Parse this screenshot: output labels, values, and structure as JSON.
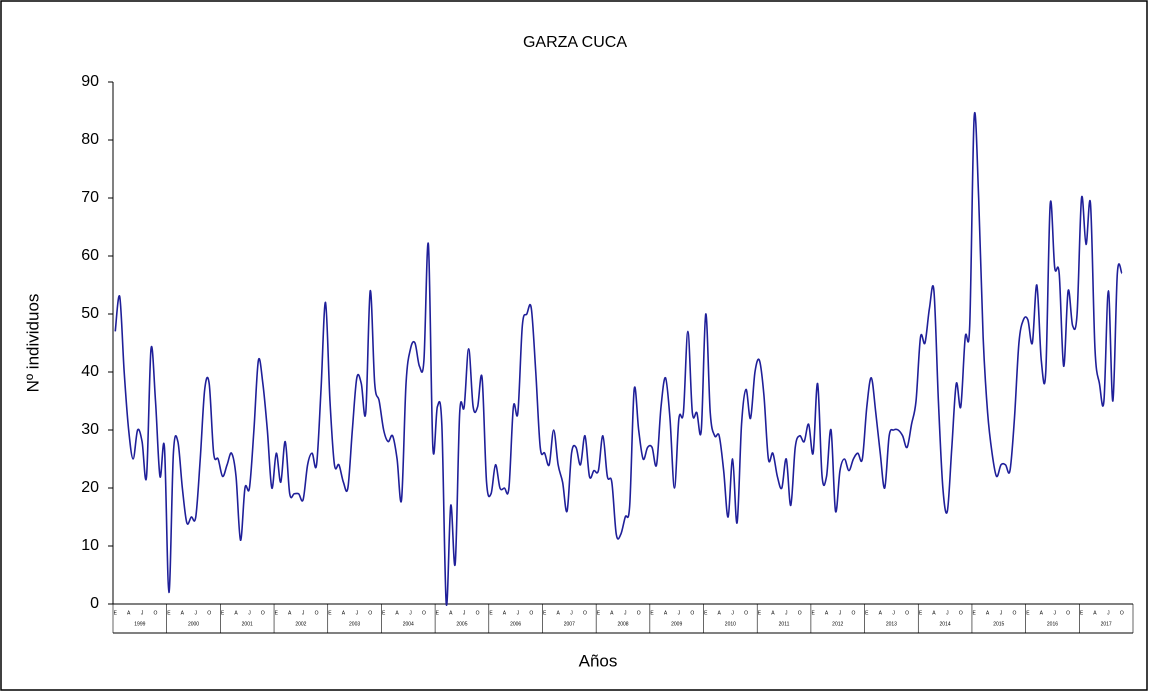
{
  "chart_data": {
    "type": "line",
    "title": "GARZA CUCA",
    "y_label": "Nº individuos",
    "x_label": "Años",
    "years": [
      "1999",
      "2000",
      "2001",
      "2002",
      "2003",
      "2004",
      "2005",
      "2006",
      "2007",
      "2008",
      "2009",
      "2010",
      "2011",
      "2012",
      "2013",
      "2014",
      "2015",
      "2016",
      "2017"
    ],
    "categories": [
      "E",
      null,
      null,
      "A",
      null,
      null,
      "J",
      null,
      null,
      "O",
      null,
      null,
      "E",
      null,
      null,
      "A",
      null,
      null,
      "J",
      null,
      null,
      "O",
      null,
      null,
      "E",
      null,
      null,
      "A",
      null,
      null,
      "J",
      null,
      null,
      "O",
      null,
      null,
      "E",
      null,
      null,
      "A",
      null,
      null,
      "J",
      null,
      null,
      "O",
      null,
      null,
      "E",
      null,
      null,
      "A",
      null,
      null,
      "J",
      null,
      null,
      "O",
      null,
      null,
      "E",
      null,
      null,
      "A",
      null,
      null,
      "J",
      null,
      null,
      "O",
      null,
      null,
      "E",
      null,
      null,
      "A",
      null,
      null,
      "J",
      null,
      null,
      "O",
      null,
      null,
      "E",
      null,
      null,
      "A",
      null,
      null,
      "J",
      null,
      null,
      "O",
      null,
      null,
      "E",
      null,
      null,
      "A",
      null,
      null,
      "J",
      null,
      null,
      "O",
      null,
      null,
      "E",
      null,
      null,
      "A",
      null,
      null,
      "J",
      null,
      null,
      "O",
      null,
      null,
      "E",
      null,
      null,
      "A",
      null,
      null,
      "J",
      null,
      null,
      "O",
      null,
      null,
      "E",
      null,
      null,
      "A",
      null,
      null,
      "J",
      null,
      null,
      "O",
      null,
      null,
      "E",
      null,
      null,
      "A",
      null,
      null,
      "J",
      null,
      null,
      "O",
      null,
      null,
      "E",
      null,
      null,
      "A",
      null,
      null,
      "J",
      null,
      null,
      "O",
      null,
      null,
      "E",
      null,
      null,
      "A",
      null,
      null,
      "J",
      null,
      null,
      "O",
      null,
      null,
      "E",
      null,
      null,
      "A",
      null,
      null,
      "J",
      null,
      null,
      "O",
      null,
      null,
      "E",
      null,
      null,
      "A",
      null,
      null,
      "J",
      null,
      null,
      "O",
      null,
      null,
      "E",
      null,
      null,
      "A",
      null,
      null,
      "J",
      null,
      null,
      "O",
      null,
      null,
      "E",
      null,
      null,
      "A",
      null,
      null,
      "J",
      null,
      null,
      "O"
    ],
    "series": [
      {
        "name": "GARZA CUCA",
        "color": "#1f1f99",
        "values": [
          47,
          53,
          40,
          30,
          25,
          30,
          28,
          22,
          44,
          35,
          22,
          27,
          2,
          26,
          28,
          20,
          14,
          15,
          15,
          25,
          37,
          38,
          26,
          25,
          22,
          24,
          26,
          22,
          11,
          20,
          20,
          30,
          42,
          38,
          30,
          20,
          26,
          21,
          28,
          19,
          19,
          19,
          18,
          24,
          26,
          24,
          37,
          52,
          35,
          24,
          24,
          21,
          20,
          30,
          39,
          38,
          33,
          54,
          38,
          35,
          30,
          28,
          29,
          25,
          18,
          38,
          44,
          45,
          41,
          42,
          62,
          27,
          34,
          31,
          0,
          17,
          7,
          33,
          34,
          44,
          34,
          34,
          39,
          21,
          19,
          24,
          20,
          20,
          20,
          34,
          33,
          48,
          50,
          51,
          40,
          27,
          26,
          24,
          30,
          24,
          21,
          16,
          26,
          27,
          24,
          29,
          22,
          23,
          23,
          29,
          22,
          21,
          12,
          12,
          15,
          17,
          37,
          30,
          25,
          27,
          27,
          24,
          34,
          39,
          32,
          20,
          32,
          33,
          47,
          33,
          33,
          30,
          50,
          33,
          29,
          29,
          23,
          15,
          25,
          14,
          31,
          37,
          32,
          40,
          42,
          36,
          25,
          26,
          22,
          20,
          25,
          17,
          27,
          29,
          28,
          31,
          26,
          38,
          22,
          22,
          30,
          16,
          23,
          25,
          23,
          25,
          26,
          25,
          34,
          39,
          33,
          26,
          20,
          29,
          30,
          30,
          29,
          27,
          31,
          35,
          46,
          45,
          51,
          54,
          35,
          20,
          16,
          27,
          38,
          34,
          46,
          48,
          84,
          70,
          46,
          33,
          26,
          22,
          24,
          24,
          23,
          32,
          45,
          49,
          49,
          45,
          55,
          42,
          40,
          69,
          58,
          57,
          41,
          54,
          48,
          50,
          70,
          62,
          69,
          44,
          38,
          35,
          54,
          35,
          57,
          57
        ]
      }
    ],
    "ylim": [
      0,
      90
    ],
    "yticks": [
      0,
      10,
      20,
      30,
      40,
      50,
      60,
      70,
      80,
      90
    ]
  }
}
